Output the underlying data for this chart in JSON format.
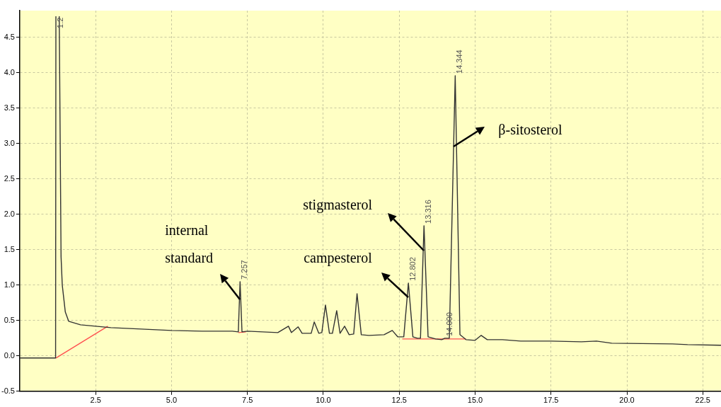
{
  "chart_data": {
    "type": "line",
    "x": [
      0,
      1.18,
      1.19,
      1.25,
      1.3,
      1.36,
      1.4,
      1.5,
      1.61,
      2.0,
      2.5,
      3.0,
      4.0,
      5.0,
      6.0,
      7.0,
      7.2,
      7.257,
      7.32,
      7.5,
      8.0,
      8.5,
      8.85,
      8.95,
      9.17,
      9.3,
      9.6,
      9.7,
      9.85,
      9.95,
      10.07,
      10.2,
      10.3,
      10.44,
      10.55,
      10.7,
      10.85,
      11.0,
      11.11,
      11.25,
      11.5,
      12.0,
      12.27,
      12.45,
      12.65,
      12.802,
      12.95,
      13.1,
      13.2,
      13.316,
      13.45,
      13.7,
      13.9,
      14.0,
      14.15,
      14.344,
      14.5,
      14.7,
      15.0,
      15.2,
      15.4,
      15.9,
      16.5,
      17.5,
      18.5,
      19.0,
      19.5,
      21.5,
      22.0,
      23.1
    ],
    "series": [
      {
        "color": "#333333",
        "values": [
          -0.03,
          -0.03,
          4.8,
          null,
          4.8,
          1.4,
          1.0,
          0.62,
          0.49,
          0.44,
          0.42,
          0.4,
          0.38,
          0.36,
          0.35,
          0.35,
          0.34,
          1.05,
          0.34,
          0.35,
          0.34,
          0.33,
          0.42,
          0.33,
          0.41,
          0.32,
          0.32,
          0.48,
          0.32,
          0.33,
          0.72,
          0.32,
          0.32,
          0.64,
          0.32,
          0.42,
          0.3,
          0.31,
          0.88,
          0.3,
          0.29,
          0.3,
          0.36,
          0.27,
          0.27,
          1.03,
          0.27,
          0.25,
          0.25,
          1.84,
          0.27,
          0.24,
          0.23,
          0.25,
          0.25,
          3.96,
          0.3,
          0.23,
          0.22,
          0.29,
          0.23,
          0.23,
          0.21,
          0.21,
          0.2,
          0.21,
          0.18,
          0.17,
          0.16,
          0.15
        ]
      },
      {
        "color": "#ff5050",
        "x": [
          1.19,
          2.9,
          2.95,
          7.2,
          7.45,
          7.5,
          12.6,
          14.7
        ],
        "values": [
          -0.03,
          0.42,
          null,
          0.33,
          0.34,
          null,
          0.24,
          0.24
        ]
      }
    ],
    "xlim": [
      0,
      23.1
    ],
    "xticks": [
      2.5,
      {
        "value": 5,
        "label": "5.0"
      },
      7.5,
      {
        "value": 10,
        "label": "10.0"
      },
      12.5,
      {
        "value": 15,
        "label": "15.0"
      },
      17.5,
      {
        "value": 20,
        "label": "20.0"
      },
      22.5
    ],
    "ylim": [
      -0.5,
      4.88
    ],
    "yticks": [
      -0.5,
      {
        "value": 0,
        "label": "0.0"
      },
      0.5,
      {
        "value": 1,
        "label": "1.0"
      },
      1.5,
      {
        "value": 2,
        "label": "2.0"
      },
      2.5,
      {
        "value": 3,
        "label": "3.0"
      },
      3.5,
      {
        "value": 4,
        "label": "4.0"
      },
      4.5
    ],
    "grid": true,
    "marker": "none",
    "annotations": [
      {
        "text": "1.2",
        "x": 1.19,
        "y": 4.6
      },
      {
        "text": "7.257",
        "x": 7.257,
        "y": 1.05
      },
      {
        "text": "12.802",
        "x": 12.802,
        "y": 1.03
      },
      {
        "text": "13.316",
        "x": 13.316,
        "y": 1.84
      },
      {
        "text": "14.000",
        "x": 14.0,
        "y": 0.25
      },
      {
        "text": "14.344",
        "x": 14.344,
        "y": 3.96
      },
      "internal\nstandard",
      "campesterol",
      "stigmasterol",
      "β-sitosterol"
    ]
  }
}
